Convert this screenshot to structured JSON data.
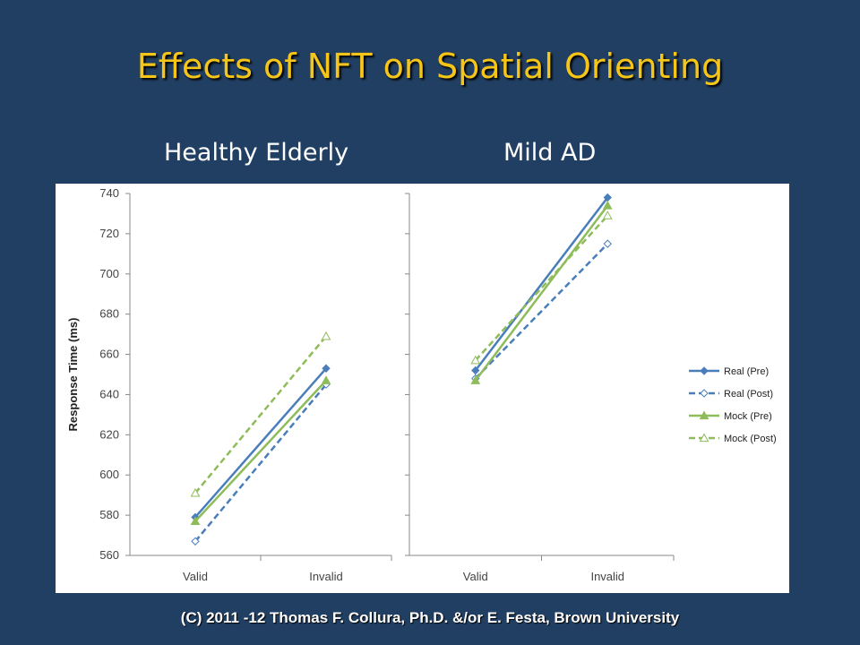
{
  "slide": {
    "title": "Effects of NFT on Spatial Orienting",
    "footer": "(C) 2011 -12 Thomas F. Collura, Ph.D. &/or E. Festa, Brown University"
  },
  "chart_data": [
    {
      "type": "line",
      "title": "Healthy Elderly",
      "ylabel": "Response Time (ms)",
      "xlabel": "",
      "categories": [
        "Valid",
        "Invalid"
      ],
      "ylim": [
        560,
        740
      ],
      "yticks": [
        560,
        580,
        600,
        620,
        640,
        660,
        680,
        700,
        720,
        740
      ],
      "grid": false,
      "series": [
        {
          "name": "Real (Pre)",
          "values": [
            579,
            653
          ],
          "color": "#4a7ebb",
          "dashed": false,
          "marker": "diamond-filled"
        },
        {
          "name": "Real (Post)",
          "values": [
            567,
            645
          ],
          "color": "#4a7ebb",
          "dashed": true,
          "marker": "diamond-open"
        },
        {
          "name": "Mock (Pre)",
          "values": [
            577,
            647
          ],
          "color": "#8fbc5a",
          "dashed": false,
          "marker": "triangle-filled"
        },
        {
          "name": "Mock (Post)",
          "values": [
            591,
            669
          ],
          "color": "#8fbc5a",
          "dashed": true,
          "marker": "triangle-open"
        }
      ]
    },
    {
      "type": "line",
      "title": "Mild AD",
      "ylabel": "",
      "xlabel": "",
      "categories": [
        "Valid",
        "Invalid"
      ],
      "ylim": [
        560,
        740
      ],
      "grid": false,
      "legend": "right",
      "series": [
        {
          "name": "Real (Pre)",
          "values": [
            652,
            738
          ],
          "color": "#4a7ebb",
          "dashed": false,
          "marker": "diamond-filled"
        },
        {
          "name": "Real (Post)",
          "values": [
            648,
            715
          ],
          "color": "#4a7ebb",
          "dashed": true,
          "marker": "diamond-open"
        },
        {
          "name": "Mock (Pre)",
          "values": [
            647,
            734
          ],
          "color": "#8fbc5a",
          "dashed": false,
          "marker": "triangle-filled"
        },
        {
          "name": "Mock (Post)",
          "values": [
            657,
            729
          ],
          "color": "#8fbc5a",
          "dashed": true,
          "marker": "triangle-open"
        }
      ]
    }
  ]
}
